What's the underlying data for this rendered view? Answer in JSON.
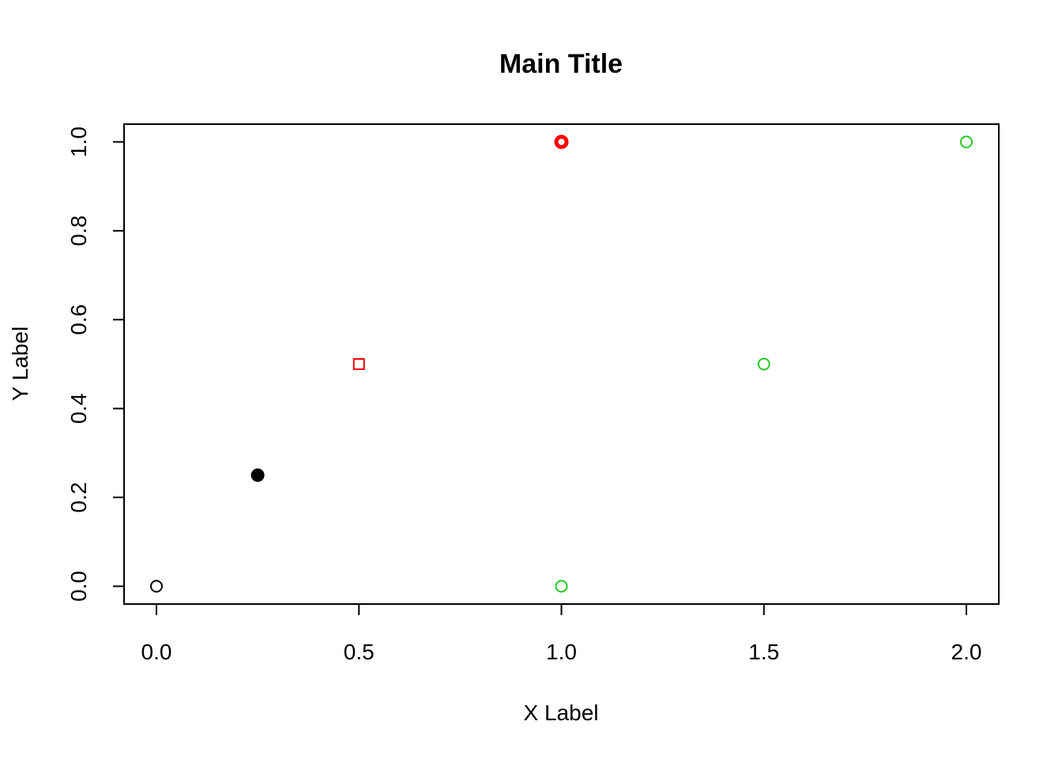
{
  "chart_data": {
    "type": "scatter",
    "title": "Main Title",
    "xlabel": "X Label",
    "ylabel": "Y Label",
    "xlim": [
      -0.08,
      2.08
    ],
    "ylim": [
      -0.04,
      1.04
    ],
    "xticks": [
      0.0,
      0.5,
      1.0,
      1.5,
      2.0
    ],
    "xtick_labels": [
      "0.0",
      "0.5",
      "1.0",
      "1.5",
      "2.0"
    ],
    "yticks": [
      0.0,
      0.2,
      0.4,
      0.6,
      0.8,
      1.0
    ],
    "ytick_labels": [
      "0.0",
      "0.2",
      "0.4",
      "0.6",
      "0.8",
      "1.0"
    ],
    "grid": false,
    "legend": "none",
    "points": [
      {
        "x": 0.0,
        "y": 0.0,
        "shape": "open-circle",
        "color": "#000000"
      },
      {
        "x": 0.25,
        "y": 0.25,
        "shape": "filled-circle",
        "color": "#000000"
      },
      {
        "x": 0.5,
        "y": 0.5,
        "shape": "open-square",
        "color": "#ff0000"
      },
      {
        "x": 1.0,
        "y": 1.0,
        "shape": "thick-open-circle",
        "color": "#ff0000"
      },
      {
        "x": 1.0,
        "y": 0.0,
        "shape": "open-circle",
        "color": "#22cc22"
      },
      {
        "x": 1.5,
        "y": 0.5,
        "shape": "open-circle",
        "color": "#22cc22"
      },
      {
        "x": 2.0,
        "y": 1.0,
        "shape": "open-circle",
        "color": "#22cc22"
      }
    ]
  }
}
